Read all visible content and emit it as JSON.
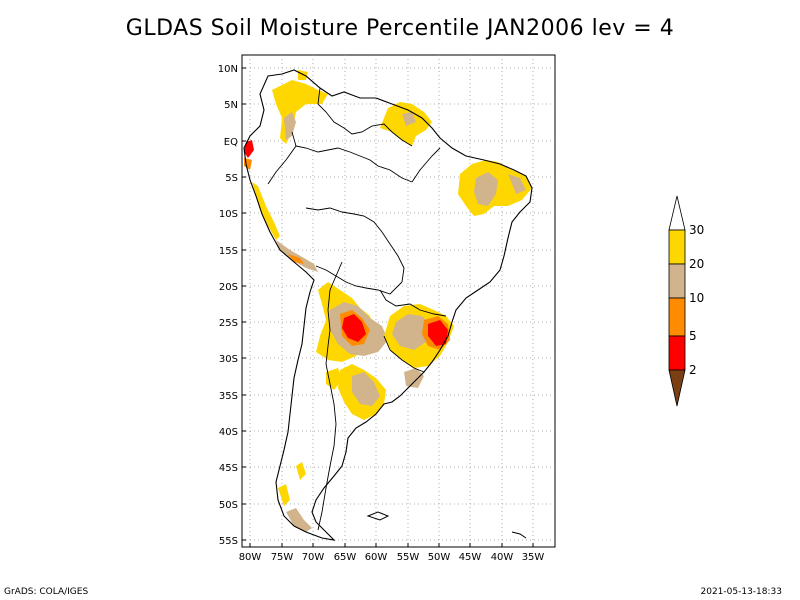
{
  "title": "GLDAS Soil Moisture Percentile JAN2006 lev = 4",
  "footer": {
    "left": "GrADS: COLA/IGES",
    "right": "2021-05-13-18:33"
  },
  "map": {
    "lat_labels": [
      "10N",
      "5N",
      "EQ",
      "5S",
      "10S",
      "15S",
      "20S",
      "25S",
      "30S",
      "35S",
      "40S",
      "45S",
      "50S",
      "55S"
    ],
    "lon_labels": [
      "80W",
      "75W",
      "70W",
      "65W",
      "60W",
      "55W",
      "50W",
      "45W",
      "40W",
      "35W"
    ]
  },
  "colorbar": {
    "labels": [
      "30",
      "20",
      "10",
      "5",
      "2"
    ],
    "colors": {
      "below_2": "#7a3f12",
      "c2_5": "#ff0000",
      "c5_10": "#ff8c00",
      "c10_20": "#d2b48c",
      "c20_30": "#ffd700",
      "above_30": "#ffffff"
    }
  }
}
